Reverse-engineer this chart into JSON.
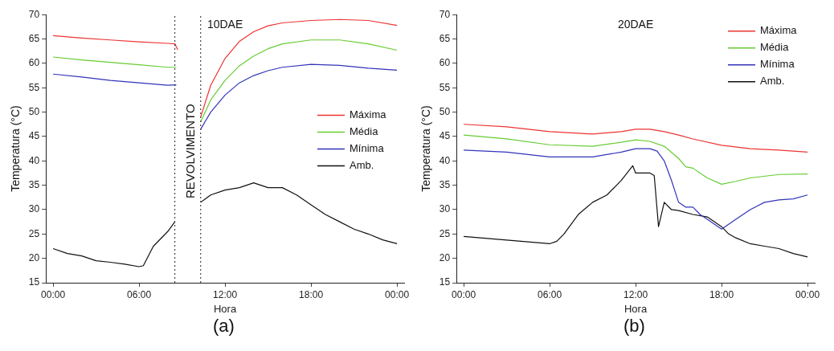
{
  "chart_data": [
    {
      "type": "line",
      "title": "10DAE",
      "xlabel": "Hora",
      "ylabel": "Temperatura (°C)",
      "xlim": [
        -0.5,
        24.5
      ],
      "ylim": [
        15,
        70
      ],
      "xticks": [
        {
          "value": 0,
          "label": "00:00"
        },
        {
          "value": 6,
          "label": "06:00"
        },
        {
          "value": 12,
          "label": "12:00"
        },
        {
          "value": 18,
          "label": "18:00"
        },
        {
          "value": 24,
          "label": "00:00"
        }
      ],
      "yticks": [
        15,
        20,
        25,
        30,
        35,
        40,
        45,
        50,
        55,
        60,
        65,
        70
      ],
      "grid": false,
      "legend": "right",
      "marker": "none",
      "line_style": "solid",
      "ref_lines": [
        {
          "axis": "x",
          "value": 8.5,
          "line_style": "dotted",
          "color": "#222222"
        },
        {
          "axis": "x",
          "value": 10.3,
          "label": "REVOLVIMENTO",
          "line_style": "dotted",
          "color": "#222222"
        }
      ],
      "annotations": [
        "(a)"
      ],
      "series": [
        {
          "name": "Máxima",
          "color": "#ee3333",
          "x": [
            0,
            2,
            4,
            6,
            8,
            8.5,
            8.7,
            9.5,
            10.3,
            11,
            12,
            13,
            14,
            15,
            16,
            18,
            20,
            22,
            24
          ],
          "values": [
            65.7,
            65.2,
            64.8,
            64.4,
            64.1,
            64,
            62.8,
            null,
            49,
            55.5,
            61,
            64.5,
            66.5,
            67.7,
            68.3,
            68.8,
            69,
            68.8,
            67.8
          ]
        },
        {
          "name": "Média",
          "color": "#66cc33",
          "x": [
            0,
            2,
            4,
            6,
            8,
            8.6,
            9.5,
            10.3,
            11,
            12,
            13,
            14,
            15,
            16,
            18,
            20,
            22,
            24
          ],
          "values": [
            61.3,
            60.7,
            60.2,
            59.7,
            59.2,
            59.2,
            null,
            48,
            52.5,
            56.5,
            59.5,
            61.5,
            63,
            64,
            64.8,
            64.8,
            64,
            62.7
          ]
        },
        {
          "name": "Mínima",
          "color": "#3333bb",
          "x": [
            0,
            2,
            4,
            6,
            8,
            8.6,
            9.5,
            10.3,
            11,
            12,
            13,
            14,
            15,
            16,
            18,
            20,
            22,
            24
          ],
          "values": [
            57.8,
            57.2,
            56.5,
            56,
            55.5,
            55.6,
            null,
            46.5,
            50,
            53.5,
            56,
            57.5,
            58.5,
            59.2,
            59.8,
            59.6,
            59,
            58.6
          ]
        },
        {
          "name": "Amb.",
          "color": "#111111",
          "x": [
            0,
            1,
            2,
            3,
            4,
            5,
            6,
            6.3,
            7,
            8,
            8.5,
            9.5,
            10.3,
            11,
            12,
            13,
            14,
            15,
            16,
            17,
            18,
            19,
            20,
            21,
            22,
            23,
            24
          ],
          "values": [
            22,
            21,
            20.5,
            19.5,
            19.2,
            18.8,
            18.3,
            18.5,
            22.5,
            25.5,
            27.5,
            null,
            31.5,
            33,
            34,
            34.5,
            35.5,
            34.5,
            34.5,
            33,
            31,
            29,
            27.5,
            26,
            25,
            23.8,
            23
          ]
        }
      ]
    },
    {
      "type": "line",
      "title": "20DAE",
      "xlabel": "Hora",
      "ylabel": "Temperatura (°C)",
      "xlim": [
        -0.5,
        24.5
      ],
      "ylim": [
        15,
        70
      ],
      "xticks": [
        {
          "value": 0,
          "label": "00:00"
        },
        {
          "value": 6,
          "label": "06:00"
        },
        {
          "value": 12,
          "label": "12:00"
        },
        {
          "value": 18,
          "label": "18:00"
        },
        {
          "value": 24,
          "label": "00:00"
        }
      ],
      "yticks": [
        15,
        20,
        25,
        30,
        35,
        40,
        45,
        50,
        55,
        60,
        65,
        70
      ],
      "grid": false,
      "legend": "top right",
      "marker": "none",
      "line_style": "solid",
      "annotations": [
        "(b)"
      ],
      "series": [
        {
          "name": "Máxima",
          "color": "#ee3333",
          "x": [
            0,
            3,
            6,
            9,
            11,
            12,
            13,
            14,
            15,
            16,
            18,
            20,
            22,
            24
          ],
          "values": [
            47.5,
            47,
            46,
            45.5,
            46,
            46.5,
            46.5,
            46,
            45.3,
            44.5,
            43.2,
            42.5,
            42.2,
            41.8
          ]
        },
        {
          "name": "Média",
          "color": "#66cc33",
          "x": [
            0,
            3,
            6,
            9,
            11,
            12,
            13,
            14,
            15,
            15.5,
            16,
            17,
            18,
            19,
            20,
            22,
            24
          ],
          "values": [
            45.3,
            44.5,
            43.3,
            43,
            43.8,
            44.3,
            44,
            43,
            40.5,
            38.8,
            38.5,
            36.5,
            35.2,
            35.8,
            36.5,
            37.2,
            37.3
          ]
        },
        {
          "name": "Mínima",
          "color": "#3333bb",
          "x": [
            0,
            3,
            6,
            9,
            11,
            12,
            13,
            13.5,
            14,
            14.5,
            15,
            15.5,
            16,
            16.5,
            17,
            18,
            19,
            20,
            21,
            22,
            23,
            24
          ],
          "values": [
            42.2,
            41.8,
            40.8,
            40.8,
            41.8,
            42.5,
            42.5,
            42,
            40,
            36,
            31.5,
            30.5,
            30.5,
            29,
            28,
            26,
            28,
            30,
            31.5,
            32,
            32.2,
            33
          ]
        },
        {
          "name": "Amb.",
          "color": "#111111",
          "x": [
            0,
            2,
            4,
            6,
            6.5,
            7,
            8,
            9,
            10,
            11,
            11.8,
            12,
            13,
            13.3,
            13.6,
            14,
            14.5,
            15,
            16,
            17,
            18,
            18.5,
            19,
            20,
            21,
            22,
            23,
            24
          ],
          "values": [
            24.5,
            24,
            23.5,
            23,
            23.5,
            25,
            29,
            31.5,
            33,
            36,
            39,
            37.5,
            37.5,
            37,
            26.5,
            31.5,
            30,
            29.8,
            29,
            28.5,
            26.5,
            25,
            24.2,
            23,
            22.5,
            22,
            21,
            20.3
          ]
        }
      ]
    }
  ]
}
